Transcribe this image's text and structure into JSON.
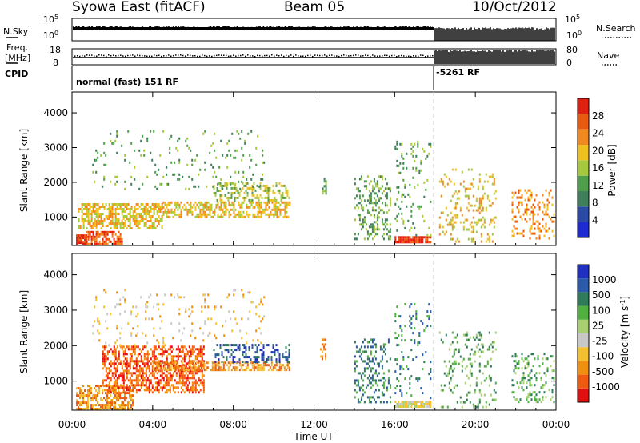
{
  "header": {
    "station": "Syowa East (fitACF)",
    "beam": "Beam 05",
    "date": "10/Oct/2012"
  },
  "summary_panels": {
    "nsky": {
      "label": "N.Sky",
      "ticks": [
        "10^5",
        "10^0"
      ]
    },
    "nsearch": {
      "label": "N.Search",
      "ticks": [
        "10^5",
        "10^0"
      ]
    },
    "freq": {
      "label_line1": "Freq.",
      "label_line2": "[MHz]",
      "ticks": [
        "18",
        "8"
      ]
    },
    "nave": {
      "label": "Nave",
      "ticks": [
        "80",
        "0"
      ]
    },
    "cpid": {
      "label": "CPID",
      "mode1": "normal (fast) 151 RF",
      "mode2": "-5261 RF"
    }
  },
  "colors": {
    "power_scale": [
      "#1e2ad2",
      "#2a4aa8",
      "#3f7f5a",
      "#4f9e4c",
      "#a6c83c",
      "#f0c020",
      "#f08a20",
      "#e85a10",
      "#e0200f"
    ],
    "velocity_scale": [
      "#e01010",
      "#f05a10",
      "#f0900f",
      "#f5c030",
      "#c8c8c8",
      "#a8d070",
      "#50b040",
      "#2e7a5a",
      "#2a5aa8",
      "#1f2fbf"
    ]
  },
  "chart_data": [
    {
      "type": "heatmap",
      "title": "",
      "ylabel": "Slant Range [km]",
      "xlabel": "",
      "x_ticks": [
        "00:00",
        "04:00",
        "08:00",
        "12:00",
        "16:00",
        "20:00",
        "00:00"
      ],
      "y_ticks": [
        "1000",
        "2000",
        "3000",
        "4000"
      ],
      "xlim_hours": [
        0,
        24
      ],
      "ylim": [
        180,
        4600
      ],
      "colorbar": {
        "label": "Power [dB]",
        "ticks": [
          "4",
          "8",
          "12",
          "16",
          "20",
          "24",
          "28"
        ]
      },
      "scatter_regions": [
        {
          "t": [
            0.2,
            0.7
          ],
          "r": [
            180,
            500
          ],
          "level": 8,
          "dense": 0.85
        },
        {
          "t": [
            0.7,
            2.5
          ],
          "r": [
            200,
            600
          ],
          "level": 7,
          "dense": 0.7
        },
        {
          "t": [
            0.3,
            4.5
          ],
          "r": [
            700,
            1400
          ],
          "level": 5,
          "dense": 0.6
        },
        {
          "t": [
            4.5,
            10.8
          ],
          "r": [
            1000,
            1450
          ],
          "level": 5,
          "dense": 0.55
        },
        {
          "t": [
            7.0,
            10.8
          ],
          "r": [
            1500,
            2000
          ],
          "level": 4,
          "dense": 0.4
        },
        {
          "t": [
            1.0,
            9.5
          ],
          "r": [
            1800,
            3500
          ],
          "level": 3,
          "dense": 0.06
        },
        {
          "t": [
            12.4,
            12.6
          ],
          "r": [
            1700,
            2200
          ],
          "level": 3,
          "dense": 0.4
        },
        {
          "t": [
            14.0,
            15.8
          ],
          "r": [
            400,
            2200
          ],
          "level": 3,
          "dense": 0.3
        },
        {
          "t": [
            16.0,
            17.8
          ],
          "r": [
            250,
            450
          ],
          "level": 8,
          "dense": 0.9
        },
        {
          "t": [
            16.0,
            17.8
          ],
          "r": [
            500,
            3200
          ],
          "level": 3,
          "dense": 0.12
        },
        {
          "t": [
            18.2,
            21.0
          ],
          "r": [
            300,
            2400
          ],
          "level": 5,
          "dense": 0.18
        },
        {
          "t": [
            21.8,
            23.9
          ],
          "r": [
            400,
            1800
          ],
          "level": 6,
          "dense": 0.25
        }
      ]
    },
    {
      "type": "heatmap",
      "title": "",
      "ylabel": "Slant Range [km]",
      "xlabel": "Time UT",
      "x_ticks": [
        "00:00",
        "04:00",
        "08:00",
        "12:00",
        "16:00",
        "20:00",
        "00:00"
      ],
      "y_ticks": [
        "1000",
        "2000",
        "3000",
        "4000"
      ],
      "xlim_hours": [
        0,
        24
      ],
      "ylim": [
        180,
        4600
      ],
      "colorbar": {
        "label": "Velocity [m s^-1]",
        "ticks": [
          "1000",
          "500",
          "100",
          "25",
          "-25",
          "-100",
          "-500",
          "-1000"
        ]
      },
      "scatter_regions": [
        {
          "t": [
            0.2,
            3.0
          ],
          "r": [
            200,
            900
          ],
          "level": 2,
          "dense": 0.55
        },
        {
          "t": [
            1.5,
            6.5
          ],
          "r": [
            700,
            2000
          ],
          "level": 1,
          "dense": 0.55
        },
        {
          "t": [
            4.0,
            10.8
          ],
          "r": [
            1300,
            1550
          ],
          "level": 2,
          "dense": 0.6
        },
        {
          "t": [
            7.0,
            10.8
          ],
          "r": [
            1550,
            2050
          ],
          "level": 8,
          "dense": 0.35
        },
        {
          "t": [
            1.0,
            9.5
          ],
          "r": [
            2000,
            3600
          ],
          "level": 3,
          "dense": 0.07
        },
        {
          "t": [
            12.3,
            12.6
          ],
          "r": [
            1600,
            2200
          ],
          "level": 2,
          "dense": 0.4
        },
        {
          "t": [
            14.0,
            15.8
          ],
          "r": [
            400,
            2200
          ],
          "level": 7,
          "dense": 0.25
        },
        {
          "t": [
            16.0,
            17.8
          ],
          "r": [
            250,
            450
          ],
          "level": 4,
          "dense": 0.8
        },
        {
          "t": [
            16.0,
            17.8
          ],
          "r": [
            500,
            3200
          ],
          "level": 7,
          "dense": 0.12
        },
        {
          "t": [
            18.2,
            21.0
          ],
          "r": [
            300,
            2400
          ],
          "level": 6,
          "dense": 0.16
        },
        {
          "t": [
            21.8,
            23.9
          ],
          "r": [
            400,
            1800
          ],
          "level": 6,
          "dense": 0.22
        }
      ]
    }
  ]
}
